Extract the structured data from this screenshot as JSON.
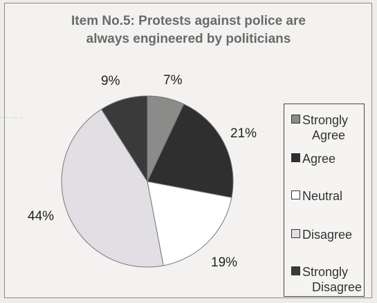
{
  "chart_data": {
    "type": "pie",
    "title": "Item No.5: Protests against police are always engineered by politicians",
    "title_lines": [
      "Item No.5: Protests against police are",
      "always engineered by politicians"
    ],
    "categories": [
      "Strongly Agree",
      "Agree",
      "Neutral",
      "Disagree",
      "Strongly Disagree"
    ],
    "values": [
      7,
      21,
      19,
      44,
      9
    ],
    "value_labels": [
      "7%",
      "21%",
      "19%",
      "44%",
      "9%"
    ],
    "colors": [
      "#8b8b89",
      "#2f2f2f",
      "#ffffff",
      "#e1dfe3",
      "#3a3a3a"
    ],
    "legend_position": "right",
    "legend_lines": [
      [
        "Strongly",
        "Agree"
      ],
      [
        "Agree"
      ],
      [
        "Neutral"
      ],
      [
        "Disagree"
      ],
      [
        "Strongly",
        "Disagree"
      ]
    ]
  }
}
